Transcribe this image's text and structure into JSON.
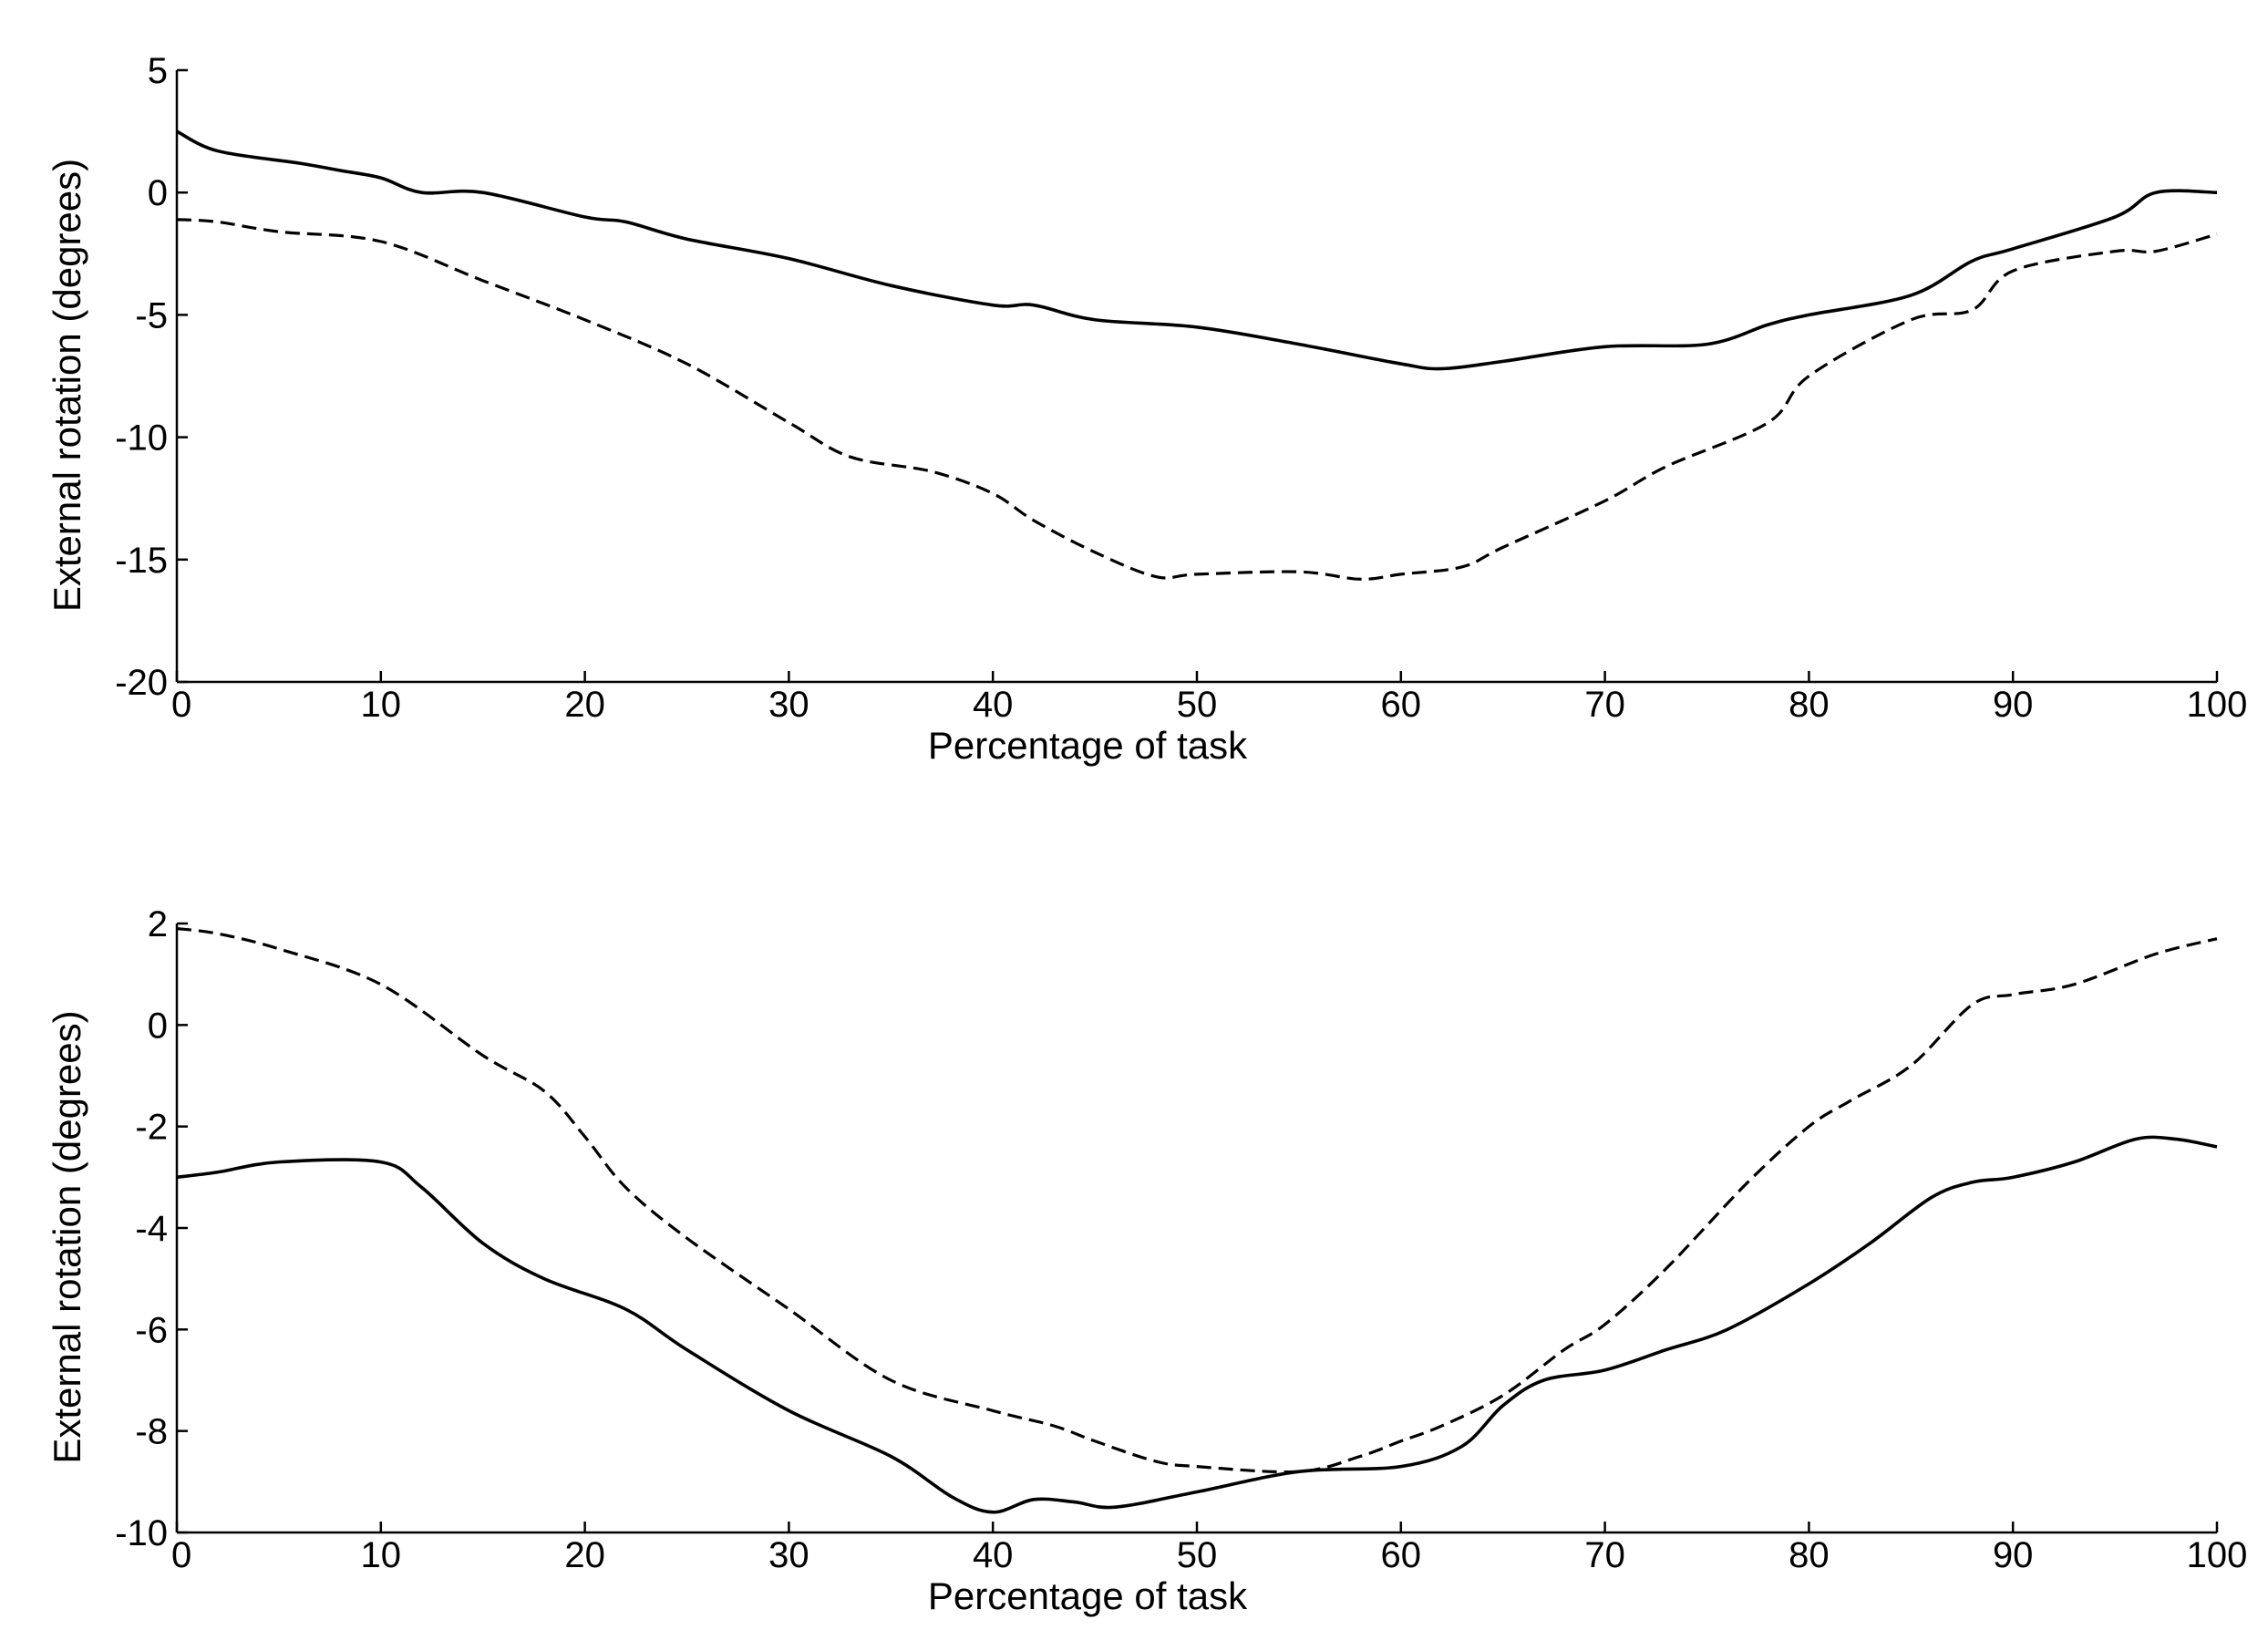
{
  "chart_data": [
    {
      "type": "line",
      "title": "",
      "xlabel": "Percentage of task",
      "ylabel": "External rotation (degrees)",
      "xlim": [
        0,
        100
      ],
      "ylim": [
        -20,
        5
      ],
      "xticks": [
        0,
        10,
        20,
        30,
        40,
        50,
        60,
        70,
        80,
        90,
        100
      ],
      "yticks": [
        -20,
        -15,
        -10,
        -5,
        0,
        5
      ],
      "grid": false,
      "legend": "none",
      "series": [
        {
          "style": "solid",
          "color": "#000000",
          "x": [
            0,
            2,
            6,
            8,
            10,
            12,
            15,
            20,
            22,
            25,
            30,
            35,
            40,
            42,
            45,
            50,
            55,
            60,
            62,
            65,
            70,
            75,
            78,
            80,
            85,
            88,
            90,
            95,
            97,
            100
          ],
          "y": [
            2.5,
            1.7,
            1.2,
            0.9,
            0.6,
            0.0,
            0.0,
            -1.0,
            -1.2,
            -1.9,
            -2.7,
            -3.8,
            -4.6,
            -4.6,
            -5.2,
            -5.5,
            -6.2,
            -7.0,
            -7.2,
            -6.9,
            -6.3,
            -6.2,
            -5.4,
            -5.0,
            -4.2,
            -2.8,
            -2.3,
            -1.0,
            0.0,
            0.0
          ]
        },
        {
          "style": "dashed",
          "color": "#000000",
          "x": [
            0,
            2,
            5,
            10,
            15,
            20,
            25,
            30,
            33,
            37,
            40,
            42,
            45,
            48,
            50,
            55,
            58,
            60,
            63,
            65,
            70,
            73,
            78,
            80,
            85,
            88,
            90,
            95,
            97,
            100
          ],
          "y": [
            -1.1,
            -1.2,
            -1.6,
            -2.0,
            -3.6,
            -5.2,
            -7.0,
            -9.4,
            -10.8,
            -11.4,
            -12.3,
            -13.4,
            -14.7,
            -15.7,
            -15.6,
            -15.5,
            -15.8,
            -15.6,
            -15.3,
            -14.5,
            -12.6,
            -11.2,
            -9.4,
            -7.5,
            -5.2,
            -4.8,
            -3.2,
            -2.4,
            -2.4,
            -1.7
          ]
        }
      ]
    },
    {
      "type": "line",
      "title": "",
      "xlabel": "Percentage of task",
      "ylabel": "External rotation (degrees)",
      "xlim": [
        0,
        100
      ],
      "ylim": [
        -10,
        2
      ],
      "xticks": [
        0,
        10,
        20,
        30,
        40,
        50,
        60,
        70,
        80,
        90,
        100
      ],
      "yticks": [
        -10,
        -8,
        -6,
        -4,
        -2,
        0,
        2
      ],
      "grid": false,
      "legend": "none",
      "series": [
        {
          "style": "solid",
          "color": "#000000",
          "x": [
            0,
            2,
            5,
            10,
            12,
            15,
            18,
            22,
            25,
            30,
            35,
            38,
            40,
            42,
            44,
            46,
            50,
            55,
            60,
            63,
            65,
            67,
            70,
            73,
            76,
            80,
            83,
            86,
            88,
            90,
            93,
            96,
            98,
            100
          ],
          "y": [
            -3.0,
            -2.9,
            -2.7,
            -2.7,
            -3.2,
            -4.3,
            -5.0,
            -5.6,
            -6.4,
            -7.6,
            -8.5,
            -9.3,
            -9.6,
            -9.35,
            -9.4,
            -9.5,
            -9.2,
            -8.8,
            -8.7,
            -8.3,
            -7.5,
            -7.0,
            -6.8,
            -6.4,
            -6.0,
            -5.1,
            -4.3,
            -3.4,
            -3.1,
            -3.0,
            -2.7,
            -2.25,
            -2.25,
            -2.4
          ]
        },
        {
          "style": "dashed",
          "color": "#000000",
          "x": [
            0,
            2,
            5,
            10,
            15,
            18,
            20,
            22,
            25,
            30,
            35,
            40,
            43,
            45,
            48,
            50,
            55,
            58,
            60,
            62,
            65,
            68,
            70,
            73,
            77,
            80,
            82,
            85,
            88,
            90,
            93,
            97,
            100
          ],
          "y": [
            1.9,
            1.8,
            1.5,
            0.8,
            -0.6,
            -1.3,
            -2.2,
            -3.2,
            -4.2,
            -5.6,
            -7.0,
            -7.6,
            -7.9,
            -8.2,
            -8.6,
            -8.7,
            -8.8,
            -8.5,
            -8.2,
            -7.9,
            -7.3,
            -6.4,
            -5.9,
            -4.8,
            -3.1,
            -2.0,
            -1.5,
            -0.8,
            0.4,
            0.6,
            0.8,
            1.4,
            1.7
          ]
        }
      ]
    }
  ]
}
